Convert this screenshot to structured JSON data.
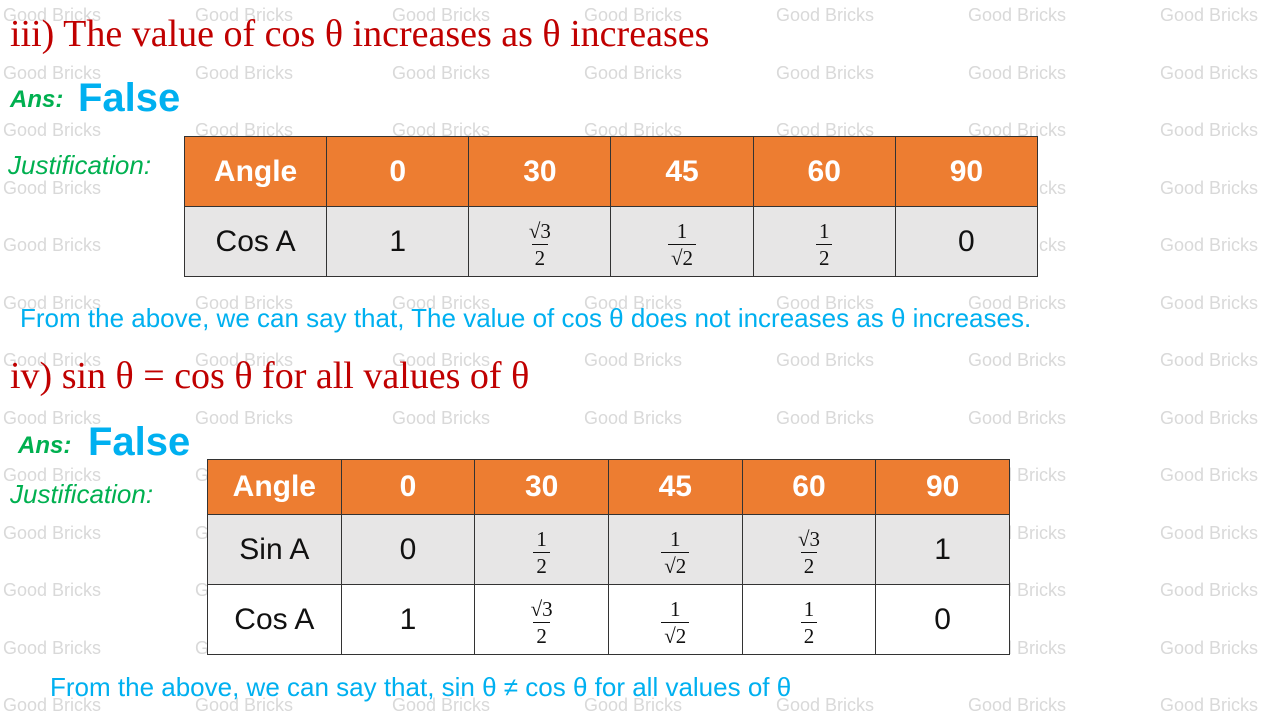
{
  "watermark": "Good Bricks",
  "sections": [
    {
      "heading": "iii) The value of cos θ increases as θ increases",
      "ans_label": "Ans:",
      "answer": "False",
      "justification_label": "Justification:",
      "table": {
        "rows": [
          [
            "Angle",
            "0",
            "30",
            "45",
            "60",
            "90"
          ],
          [
            "Cos A",
            "1",
            {
              "num": "√3",
              "den": "2"
            },
            {
              "num": "1",
              "den": "√2"
            },
            {
              "num": "1",
              "den": "2"
            },
            "0"
          ]
        ]
      },
      "conclusion": "From the above, we can say that, The value of cos θ does not increases as θ increases."
    },
    {
      "heading": "iv) sin θ  = cos θ  for all values of θ",
      "ans_label": "Ans:",
      "answer": "False",
      "justification_label": "Justification:",
      "table": {
        "rows": [
          [
            "Angle",
            "0",
            "30",
            "45",
            "60",
            "90"
          ],
          [
            "Sin A",
            "0",
            {
              "num": "1",
              "den": "2"
            },
            {
              "num": "1",
              "den": "√2"
            },
            {
              "num": "√3",
              "den": "2"
            },
            "1"
          ],
          [
            "Cos A",
            "1",
            {
              "num": "√3",
              "den": "2"
            },
            {
              "num": "1",
              "den": "√2"
            },
            {
              "num": "1",
              "den": "2"
            },
            "0"
          ]
        ]
      },
      "conclusion": "From the above, we can say that, sin θ  ≠ cos θ  for all values of θ"
    }
  ]
}
